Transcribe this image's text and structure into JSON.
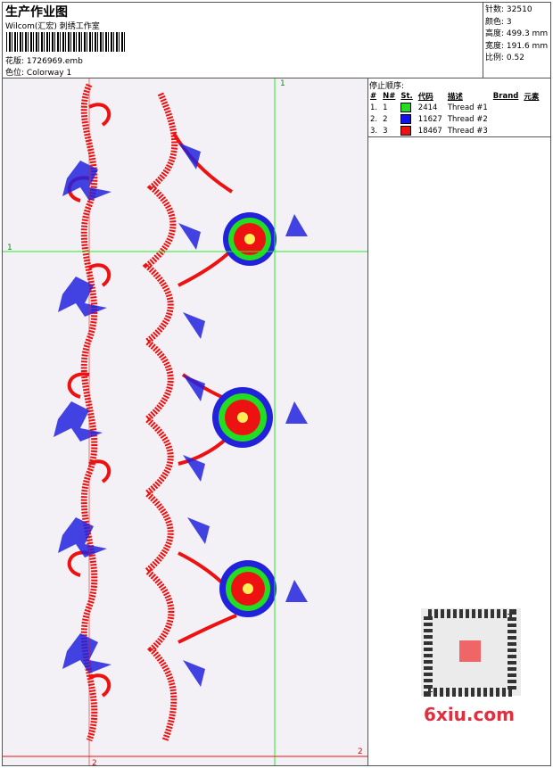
{
  "header": {
    "title": "生产作业图",
    "studio": "Wilcom(汇宏) 刺绣工作室",
    "design_label": "花版:",
    "design_file": "1726969.emb",
    "colorway_label": "色位:",
    "colorway": "Colorway 1"
  },
  "stats": [
    {
      "label": "针数:",
      "value": "32510"
    },
    {
      "label": "颜色:",
      "value": "3"
    },
    {
      "label": "高度:",
      "value": "499.3 mm"
    },
    {
      "label": "宽度:",
      "value": "191.6 mm"
    },
    {
      "label": "比例:",
      "value": "0.52"
    }
  ],
  "stop_sequence": {
    "title": "停止顺序:",
    "columns": [
      "#",
      "N#",
      "St.",
      "代码",
      "描述",
      "Brand",
      "元素"
    ],
    "rows": [
      {
        "index": "1.",
        "needle": "1",
        "color": "#22dd22",
        "code": "2414",
        "description": "Thread #1"
      },
      {
        "index": "2.",
        "needle": "2",
        "color": "#1111ee",
        "code": "11627",
        "description": "Thread #2"
      },
      {
        "index": "3.",
        "needle": "3",
        "color": "#ee1111",
        "code": "18467",
        "description": "Thread #3"
      }
    ]
  },
  "markers": {
    "top": "1",
    "left": "1",
    "right_bottom": "2",
    "bottom": "2"
  },
  "watermark": "6xiu.com"
}
